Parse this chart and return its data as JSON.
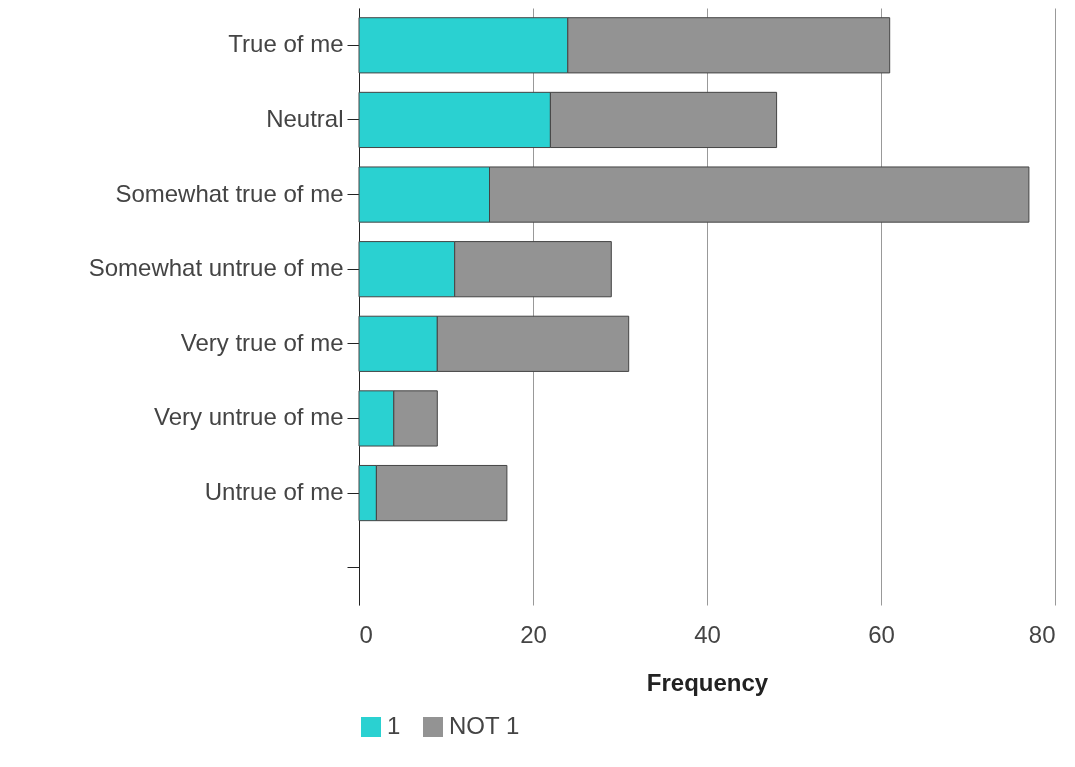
{
  "chart_data": {
    "type": "bar",
    "orientation": "horizontal",
    "stacked": true,
    "xlabel": "Frequency",
    "categories": [
      "True of me",
      "Neutral",
      "Somewhat true of me",
      "Somewhat untrue of me",
      "Very true of me",
      "Very untrue of me",
      "Untrue of me",
      null
    ],
    "series": [
      {
        "name": "1",
        "color": "#2ad1d1",
        "values": [
          24,
          22,
          15,
          11,
          9,
          4,
          2,
          null
        ]
      },
      {
        "name": "NOT 1",
        "color": "#939393",
        "values": [
          37,
          26,
          62,
          18,
          22,
          5,
          15,
          null
        ]
      }
    ],
    "xlim": [
      0,
      80
    ],
    "xticks": [
      0,
      20,
      40,
      60,
      80
    ],
    "grid": "x",
    "legend": "bottom"
  }
}
